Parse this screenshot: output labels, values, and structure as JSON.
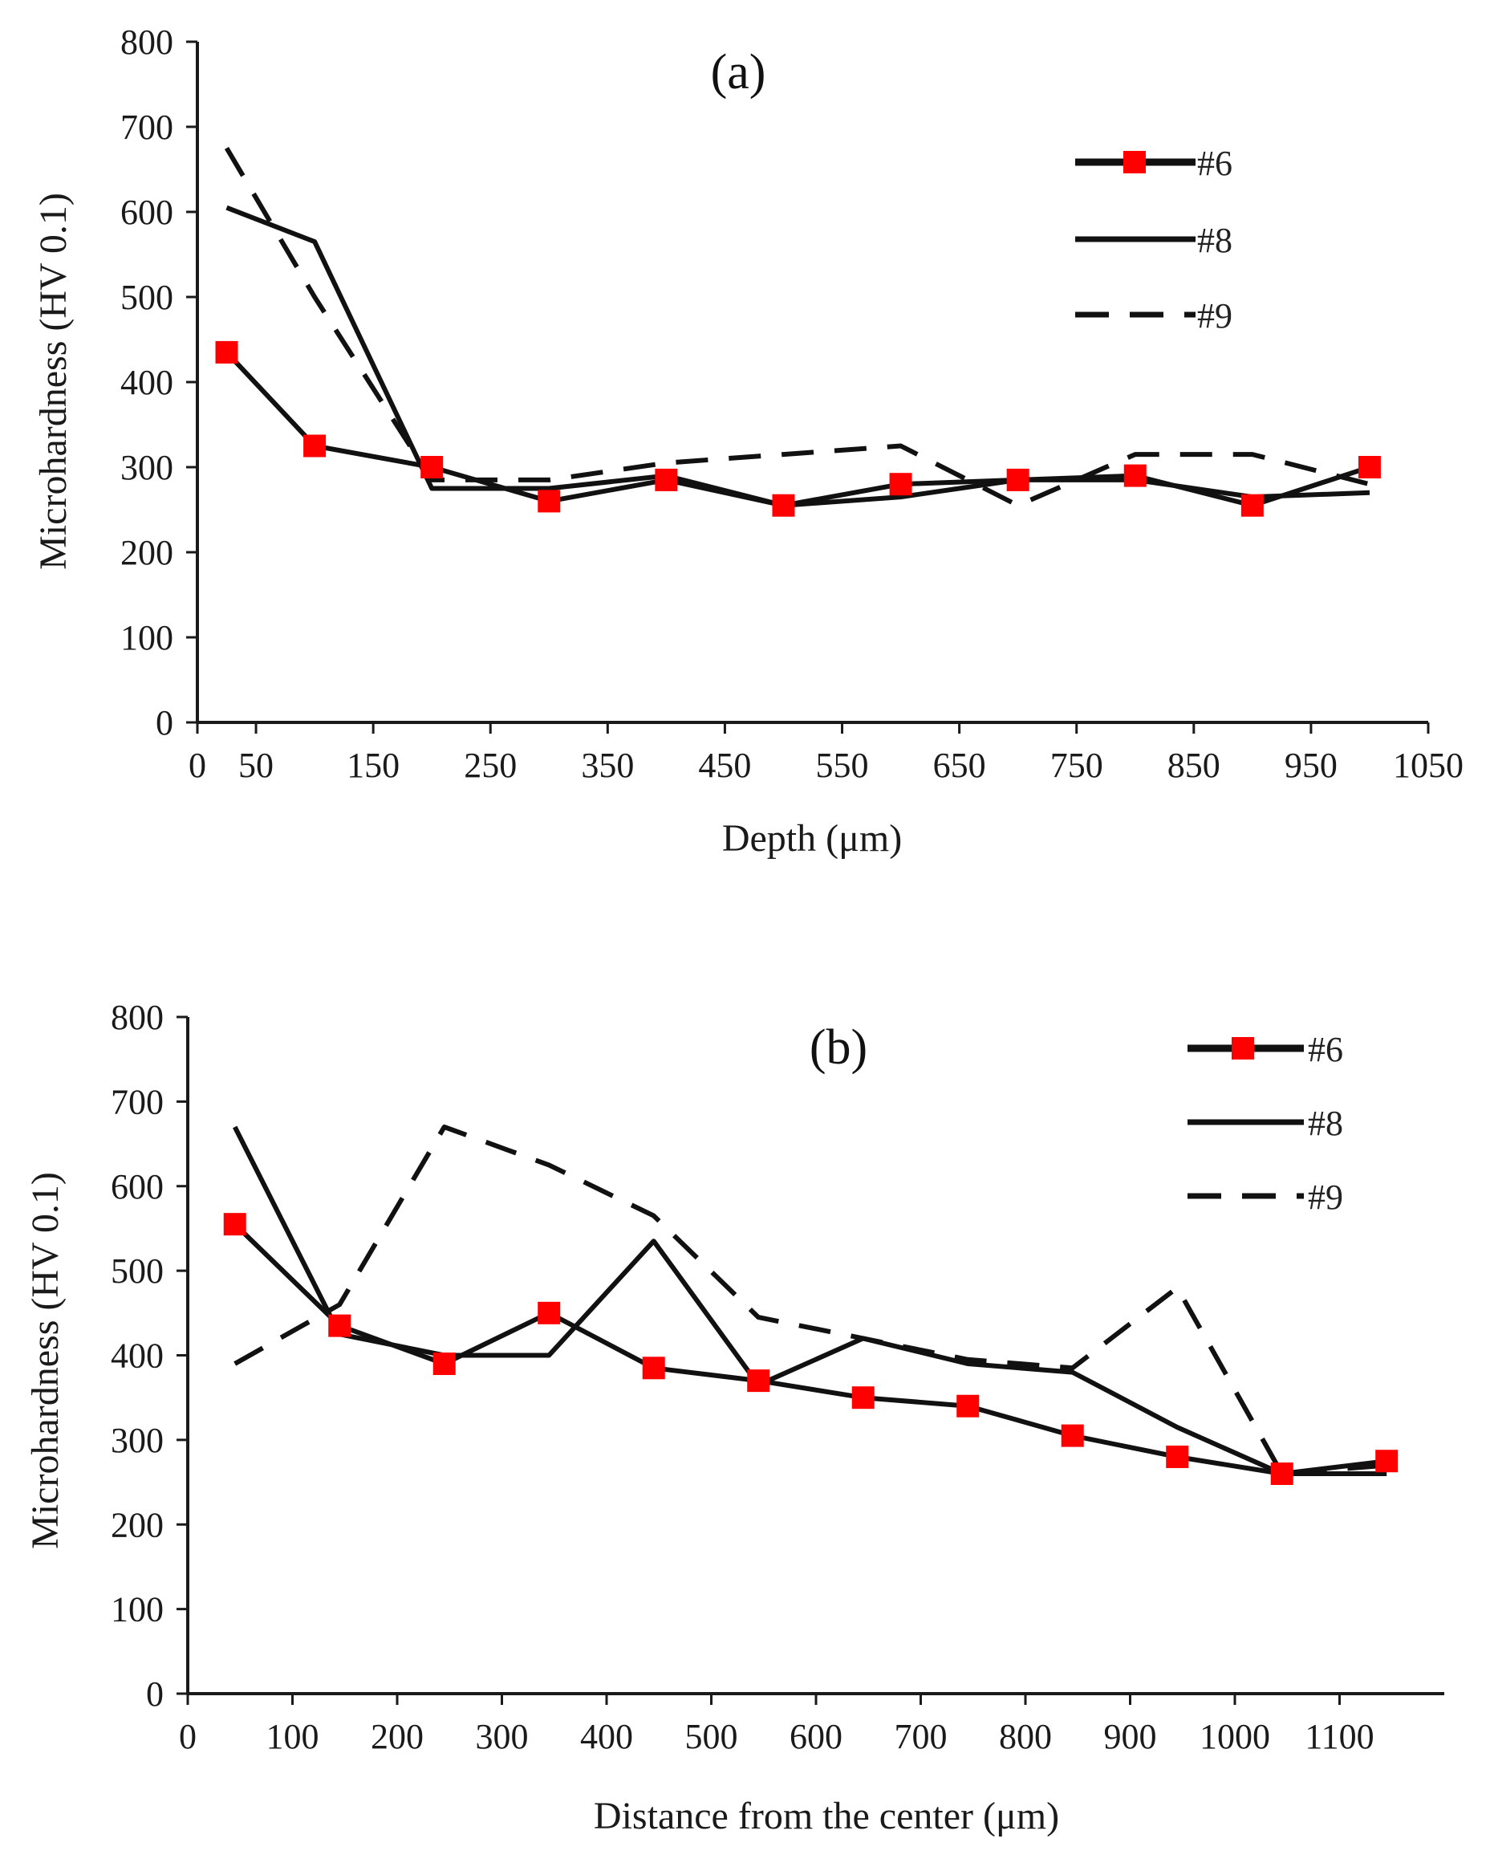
{
  "colors": {
    "axis": "#1a1a1a",
    "line": "#111111",
    "marker": "#ff0000"
  },
  "chart_data": [
    {
      "type": "line",
      "panel_label": "(a)",
      "xlabel": "Depth (μm)",
      "ylabel": "Microhardness (HV 0.1)",
      "xlim": [
        0,
        1050
      ],
      "ylim": [
        0,
        800
      ],
      "xticks": [
        0,
        50,
        150,
        250,
        350,
        450,
        550,
        650,
        750,
        850,
        950,
        1050
      ],
      "yticks": [
        0,
        100,
        200,
        300,
        400,
        500,
        600,
        700,
        800
      ],
      "legend": "top-right",
      "series": [
        {
          "name": "#6",
          "style": "solid-marker",
          "x": [
            25,
            100,
            200,
            300,
            400,
            500,
            600,
            700,
            800,
            900,
            1000
          ],
          "y": [
            435,
            325,
            300,
            260,
            285,
            255,
            280,
            285,
            290,
            255,
            300
          ]
        },
        {
          "name": "#8",
          "style": "solid",
          "x": [
            25,
            100,
            200,
            300,
            400,
            500,
            600,
            700,
            800,
            900,
            1000
          ],
          "y": [
            605,
            565,
            275,
            275,
            290,
            255,
            265,
            285,
            285,
            265,
            270
          ]
        },
        {
          "name": "#9",
          "style": "dashed",
          "x": [
            25,
            100,
            200,
            300,
            400,
            500,
            600,
            700,
            800,
            900,
            1000
          ],
          "y": [
            675,
            500,
            285,
            285,
            305,
            315,
            325,
            255,
            315,
            315,
            280
          ]
        }
      ]
    },
    {
      "type": "line",
      "panel_label": "(b)",
      "xlabel": "Distance from the center (μm)",
      "ylabel": "Microhardness (HV 0.1)",
      "xlim": [
        0,
        1200
      ],
      "ylim": [
        0,
        800
      ],
      "xticks": [
        0,
        100,
        200,
        300,
        400,
        500,
        600,
        700,
        800,
        900,
        1000,
        1100
      ],
      "yticks": [
        0,
        100,
        200,
        300,
        400,
        500,
        600,
        700,
        800
      ],
      "legend": "top-right",
      "series": [
        {
          "name": "#6",
          "style": "solid-marker",
          "x": [
            45,
            145,
            245,
            345,
            445,
            545,
            645,
            745,
            845,
            945,
            1045,
            1145
          ],
          "y": [
            555,
            435,
            390,
            450,
            385,
            370,
            350,
            340,
            305,
            280,
            260,
            275
          ]
        },
        {
          "name": "#8",
          "style": "solid",
          "x": [
            45,
            145,
            245,
            345,
            445,
            545,
            645,
            745,
            845,
            945,
            1045,
            1145
          ],
          "y": [
            670,
            425,
            400,
            400,
            535,
            365,
            420,
            390,
            380,
            315,
            260,
            260
          ]
        },
        {
          "name": "#9",
          "style": "dashed",
          "x": [
            45,
            145,
            245,
            345,
            445,
            545,
            645,
            745,
            845,
            945,
            1045,
            1145
          ],
          "y": [
            390,
            460,
            670,
            625,
            565,
            445,
            420,
            395,
            385,
            480,
            260,
            270
          ]
        }
      ]
    }
  ]
}
